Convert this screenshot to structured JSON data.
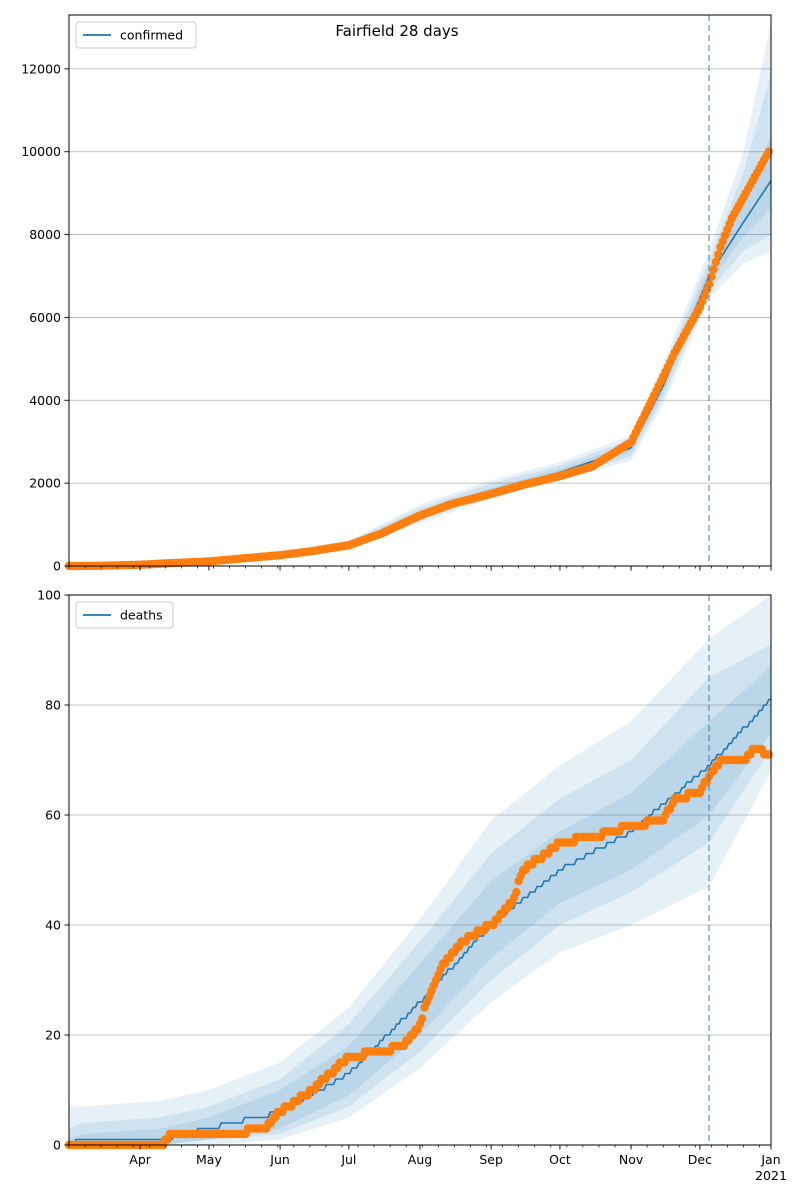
{
  "figure": {
    "title": "Fairfield 28 days"
  },
  "colors": {
    "model": "#1f77b4",
    "observed": "#ff7f0e",
    "band": "#1f77b4",
    "grid": "#b0b0b0",
    "vline": "#1f77b4"
  },
  "chart_data": [
    {
      "type": "line",
      "name": "confirmed-panel",
      "legend": [
        "confirmed"
      ],
      "legend_position": "top-left",
      "x_ticks": [
        "Apr",
        "May",
        "Jun",
        "Jul",
        "Aug",
        "Sep",
        "Oct",
        "Nov",
        "Dec",
        "Jan"
      ],
      "x_tick_year": "2021",
      "x_range": [
        "2020-03-01",
        "2021-01-01"
      ],
      "y_ticks": [
        "0",
        "2000",
        "4000",
        "6000",
        "8000",
        "10000",
        "12000"
      ],
      "ylim": [
        0,
        13300
      ],
      "grid": "horizontal",
      "forecast_start": "2020-12-05",
      "observed_end": "2020-12-31",
      "model": {
        "x": [
          "2020-03-01",
          "2020-04-01",
          "2020-05-01",
          "2020-06-01",
          "2020-07-01",
          "2020-08-01",
          "2020-09-01",
          "2020-10-01",
          "2020-11-01",
          "2020-11-15",
          "2020-12-05",
          "2020-12-20",
          "2021-01-01"
        ],
        "y": [
          0,
          20,
          120,
          260,
          500,
          1220,
          1820,
          2260,
          2850,
          4350,
          7000,
          8300,
          9300
        ]
      },
      "bands": [
        {
          "lower": [
            0,
            10,
            90,
            210,
            420,
            1030,
            1630,
            2060,
            2550,
            3900,
            6450,
            7300,
            7600
          ],
          "upper": [
            30,
            35,
            160,
            330,
            620,
            1480,
            2070,
            2510,
            3150,
            4900,
            7600,
            10000,
            13100
          ]
        },
        {
          "lower": [
            0,
            12,
            100,
            225,
            450,
            1100,
            1700,
            2120,
            2650,
            4050,
            6650,
            7600,
            8000
          ],
          "upper": [
            25,
            30,
            145,
            305,
            580,
            1400,
            1990,
            2430,
            3050,
            4720,
            7380,
            9500,
            11900
          ]
        },
        {
          "lower": [
            0,
            15,
            110,
            240,
            470,
            1160,
            1760,
            2190,
            2750,
            4200,
            6820,
            7950,
            8650
          ],
          "upper": [
            20,
            25,
            130,
            280,
            535,
            1290,
            1890,
            2340,
            2950,
            4550,
            7200,
            8800,
            10400
          ]
        }
      ],
      "observed": {
        "x": [
          "2020-03-01",
          "2020-03-15",
          "2020-04-01",
          "2020-04-15",
          "2020-05-01",
          "2020-05-15",
          "2020-06-01",
          "2020-06-15",
          "2020-07-01",
          "2020-07-15",
          "2020-08-01",
          "2020-08-15",
          "2020-09-01",
          "2020-09-15",
          "2020-10-01",
          "2020-10-15",
          "2020-11-01",
          "2020-11-10",
          "2020-11-20",
          "2020-12-01",
          "2020-12-05",
          "2020-12-10",
          "2020-12-15",
          "2020-12-20",
          "2020-12-25",
          "2020-12-31"
        ],
        "y": [
          0,
          5,
          30,
          70,
          110,
          180,
          260,
          360,
          500,
          780,
          1220,
          1500,
          1740,
          1960,
          2170,
          2400,
          2990,
          4000,
          5150,
          6250,
          6800,
          7700,
          8400,
          8900,
          9400,
          10000
        ]
      }
    },
    {
      "type": "line",
      "name": "deaths-panel",
      "legend": [
        "deaths"
      ],
      "legend_position": "top-left",
      "x_ticks": [
        "Apr",
        "May",
        "Jun",
        "Jul",
        "Aug",
        "Sep",
        "Oct",
        "Nov",
        "Dec",
        "Jan"
      ],
      "x_tick_year": "2021",
      "x_range": [
        "2020-03-01",
        "2021-01-01"
      ],
      "y_ticks": [
        "0",
        "20",
        "40",
        "60",
        "80",
        "100"
      ],
      "ylim": [
        0,
        100
      ],
      "grid": "horizontal",
      "forecast_start": "2020-12-05",
      "observed_end": "2020-12-31",
      "model": {
        "x": [
          "2020-03-01",
          "2020-03-07",
          "2020-04-10",
          "2020-05-01",
          "2020-06-01",
          "2020-07-01",
          "2020-08-01",
          "2020-09-01",
          "2020-10-01",
          "2020-11-01",
          "2020-12-05",
          "2021-01-01"
        ],
        "y": [
          0,
          1,
          1,
          3,
          6,
          13,
          26,
          40,
          50,
          57,
          69,
          81
        ]
      },
      "bands": [
        {
          "lower": [
            0,
            0,
            0,
            0,
            1,
            5,
            14,
            26,
            35,
            40,
            47,
            68
          ],
          "upper": [
            7,
            7,
            8,
            10,
            15,
            25,
            41,
            59,
            69,
            77,
            92,
            100
          ]
        },
        {
          "lower": [
            0,
            0,
            0,
            1,
            2,
            7,
            17,
            30,
            40,
            46,
            55,
            72
          ],
          "upper": [
            3,
            4,
            5,
            7,
            12,
            22,
            37,
            53,
            63,
            70,
            85,
            91
          ]
        },
        {
          "lower": [
            0,
            0,
            0,
            1,
            3,
            9,
            20,
            34,
            44,
            50,
            60,
            75
          ],
          "upper": [
            1,
            2,
            3,
            5,
            10,
            18,
            33,
            48,
            57,
            64,
            77,
            87
          ]
        }
      ],
      "observed": {
        "x": [
          "2020-03-01",
          "2020-04-10",
          "2020-04-15",
          "2020-05-10",
          "2020-05-25",
          "2020-06-01",
          "2020-06-15",
          "2020-07-01",
          "2020-07-15",
          "2020-07-25",
          "2020-08-01",
          "2020-08-05",
          "2020-08-10",
          "2020-08-20",
          "2020-09-01",
          "2020-09-10",
          "2020-09-15",
          "2020-09-25",
          "2020-10-01",
          "2020-10-15",
          "2020-11-01",
          "2020-11-15",
          "2020-11-20",
          "2020-12-01",
          "2020-12-05",
          "2020-12-10",
          "2020-12-20",
          "2020-12-25",
          "2020-12-31"
        ],
        "y": [
          0,
          0,
          2,
          2,
          3,
          6,
          10,
          16,
          17,
          18,
          22,
          27,
          32,
          37,
          40,
          44,
          50,
          53,
          55,
          56,
          58,
          59,
          63,
          64,
          67,
          70,
          70,
          72,
          71
        ]
      }
    }
  ]
}
